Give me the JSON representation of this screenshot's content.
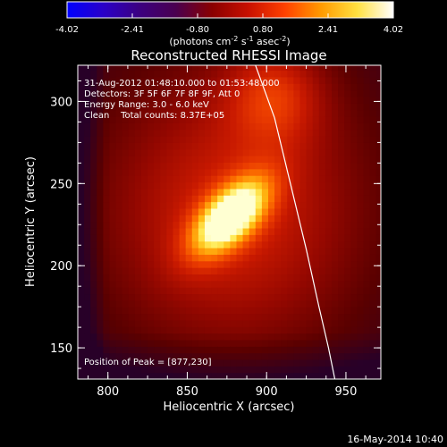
{
  "colorbar": {
    "min_label": "-4.02",
    "ticks": [
      "-4.02",
      "-2.41",
      "-0.80",
      "0.80",
      "2.41",
      "4.02"
    ],
    "unit_prefix": "(photons cm",
    "unit_exp1": "-2",
    "unit_mid": " s",
    "unit_exp2": "-1",
    "unit_end": " asec",
    "unit_exp3": "-2",
    "unit_close": ")",
    "stops": [
      "#0000ff",
      "#2a00c8",
      "#3c0080",
      "#4a0050",
      "#8a0000",
      "#c81000",
      "#ff4000",
      "#ff9a00",
      "#ffe040",
      "#ffffff"
    ]
  },
  "chart_data": {
    "type": "heatmap",
    "title": "Reconstructed RHESSI Image",
    "xlabel": "Heliocentric X (arcsec)",
    "ylabel": "Heliocentric Y (arcsec)",
    "xlim": [
      781,
      972
    ],
    "ylim": [
      131,
      322
    ],
    "xticks": [
      800,
      850,
      900,
      950
    ],
    "yticks": [
      150,
      200,
      250,
      300
    ],
    "source_peak": {
      "x": 877,
      "y": 230,
      "relative_intensity": 1.0
    },
    "secondary_source": {
      "x": 905,
      "y": 305,
      "relative_intensity": 0.55
    },
    "limb": [
      [
        893,
        322
      ],
      [
        905,
        290
      ],
      [
        915,
        250
      ],
      [
        925,
        210
      ],
      [
        933,
        175
      ],
      [
        939,
        150
      ],
      [
        943,
        131
      ]
    ],
    "info_lines": [
      "31-Aug-2012 01:48:10.000 to 01:53:48.000",
      "Detectors: 3F 5F 6F 7F 8F 9F, Att 0",
      "Energy Range: 3.0 - 6.0 keV",
      "Clean    Total counts: 8.37E+05"
    ],
    "peak_text": "Position of Peak = [877,230]"
  },
  "timestamp": "16-May-2014 10:40"
}
